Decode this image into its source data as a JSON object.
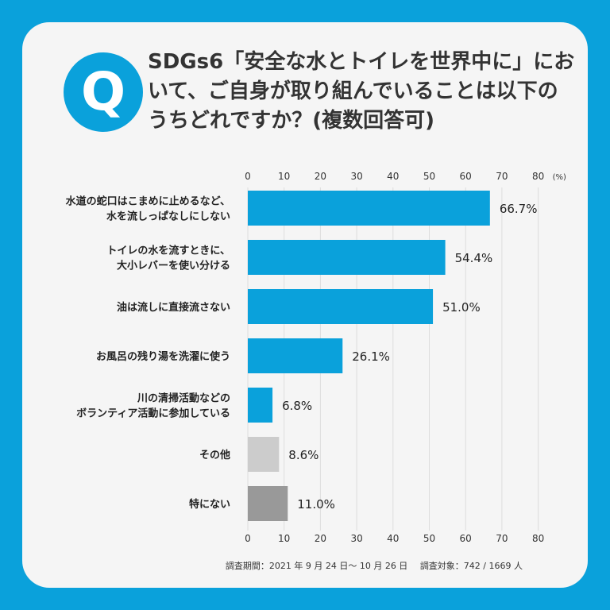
{
  "header": {
    "badge": "Q",
    "question": "SDGs6「安全な水とトイレを世界中に」において、ご自身が取り組んでいることは以下のうちどれですか？(複数回答可)"
  },
  "chart_data": {
    "type": "bar",
    "orientation": "horizontal",
    "title": "",
    "xlabel": "",
    "ylabel": "",
    "unit": "(%)",
    "xlim": [
      0,
      80
    ],
    "ticks": [
      0,
      10,
      20,
      30,
      40,
      50,
      60,
      70,
      80
    ],
    "grid": true,
    "categories": [
      "水道の蛇口はこまめに止めるなど、\n水を流しっぱなしにしない",
      "トイレの水を流すときに、\n大小レバーを使い分ける",
      "油は流しに直接流さない",
      "お風呂の残り湯を洗濯に使う",
      "川の清掃活動などの\nボランティア活動に参加している",
      "その他",
      "特にない"
    ],
    "values": [
      66.7,
      54.4,
      51.0,
      26.1,
      6.8,
      8.6,
      11.0
    ],
    "value_labels": [
      "66.7%",
      "54.4%",
      "51.0%",
      "26.1%",
      "6.8%",
      "8.6%",
      "11.0%"
    ],
    "colors": [
      "#0aa1db",
      "#0aa1db",
      "#0aa1db",
      "#0aa1db",
      "#0aa1db",
      "#cccccc",
      "#999999"
    ]
  },
  "footer": {
    "period": "調査期間：2021 年 9 月 24 日〜 10 月 26 日",
    "target": "調査対象：742 / 1669 人"
  }
}
